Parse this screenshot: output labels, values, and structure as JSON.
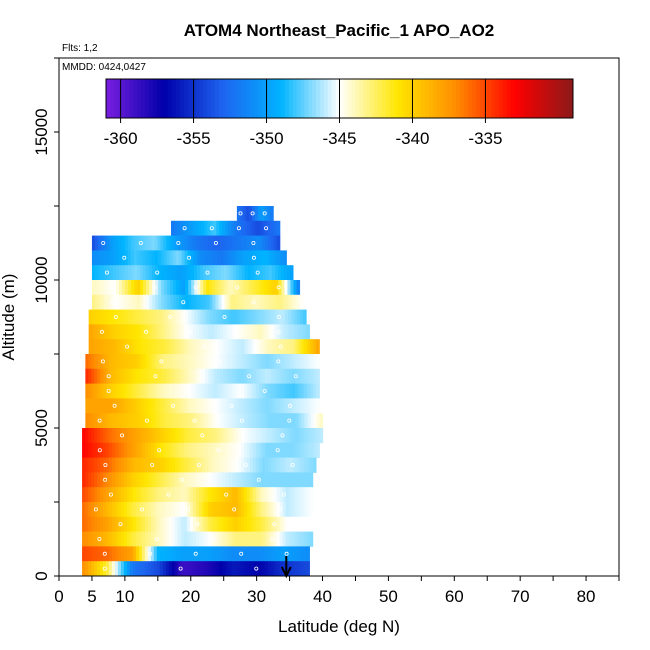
{
  "chart_data": {
    "type": "heatmap",
    "title": "ATOM4 Northeast_Pacific_1 APO_AO2",
    "annotations": [
      "Flts: 1,2",
      "MMDD: 0424,0427"
    ],
    "xlabel": "Latitude (deg N)",
    "ylabel": "Altitude (m)",
    "xlim": [
      0,
      85
    ],
    "ylim": [
      0,
      17500
    ],
    "x_ticks": [
      0,
      5,
      10,
      20,
      30,
      40,
      50,
      60,
      70,
      80
    ],
    "y_ticks": [
      0,
      5000,
      10000,
      15000
    ],
    "colorbar": {
      "ticks": [
        -360,
        -355,
        -350,
        -345,
        -340,
        -335
      ],
      "range": [
        -361,
        -329
      ],
      "colors": [
        "#7a1fe0",
        "#0000aa",
        "#1e64f0",
        "#00b4ff",
        "#ffffff",
        "#ffe600",
        "#ff8c00",
        "#ff0000",
        "#8b1a1a"
      ]
    },
    "marker": {
      "latitude": 34.5,
      "label": ""
    },
    "data_rows": [
      {
        "alt_lo": 12000,
        "alt_hi": 12500,
        "lat_min": 27,
        "lat_max": 32.5,
        "values": [
          -352,
          -354,
          -350,
          -352
        ]
      },
      {
        "alt_lo": 11500,
        "alt_hi": 12000,
        "lat_min": 17,
        "lat_max": 33.5,
        "values": [
          -352,
          -350,
          -348,
          -352,
          -354,
          -352
        ]
      },
      {
        "alt_lo": 11000,
        "alt_hi": 11500,
        "lat_min": 5,
        "lat_max": 33.5,
        "values": [
          -354,
          -350,
          -348,
          -347,
          -350,
          -352,
          -353,
          -352,
          -351,
          -354
        ]
      },
      {
        "alt_lo": 10500,
        "alt_hi": 11000,
        "lat_min": 5,
        "lat_max": 34.5,
        "values": [
          -351,
          -350,
          -348,
          -349,
          -347,
          -351,
          -352,
          -350,
          -349,
          -351
        ]
      },
      {
        "alt_lo": 10000,
        "alt_hi": 10500,
        "lat_min": 5,
        "lat_max": 35.5,
        "values": [
          -349,
          -348,
          -347,
          -349,
          -350,
          -348,
          -347,
          -349,
          -348,
          -350
        ]
      },
      {
        "alt_lo": 9500,
        "alt_hi": 10000,
        "lat_min": 5,
        "lat_max": 36.5,
        "values": [
          -344,
          -345,
          -340,
          -347,
          -350,
          -341,
          -344,
          -342,
          -340,
          -352
        ]
      },
      {
        "alt_lo": 9000,
        "alt_hi": 9500,
        "lat_min": 5,
        "lat_max": 37,
        "values": [
          -343,
          -345,
          -344,
          -347,
          -349,
          -348,
          -343,
          -344,
          -343,
          -345
        ]
      },
      {
        "alt_lo": 8500,
        "alt_hi": 9000,
        "lat_min": 4.5,
        "lat_max": 37.5,
        "values": [
          -340,
          -341,
          -342,
          -343,
          -345,
          -347,
          -348,
          -347,
          -346,
          -348
        ]
      },
      {
        "alt_lo": 8000,
        "alt_hi": 8500,
        "lat_min": 4.5,
        "lat_max": 38,
        "values": [
          -338,
          -340,
          -341,
          -343,
          -345,
          -346,
          -345,
          -344,
          -346,
          -347
        ]
      },
      {
        "alt_lo": 7500,
        "alt_hi": 8000,
        "lat_min": 4.5,
        "lat_max": 39.5,
        "values": [
          -338,
          -339,
          -341,
          -342,
          -344,
          -345,
          -346,
          -344,
          -343,
          -338
        ]
      },
      {
        "alt_lo": 7000,
        "alt_hi": 7500,
        "lat_min": 4,
        "lat_max": 39.5,
        "values": [
          -336,
          -339,
          -340,
          -343,
          -344,
          -345,
          -346,
          -347,
          -346,
          -345
        ]
      },
      {
        "alt_lo": 6500,
        "alt_hi": 7000,
        "lat_min": 4,
        "lat_max": 39.5,
        "values": [
          -334,
          -339,
          -341,
          -342,
          -344,
          -346,
          -347,
          -346,
          -347,
          -346
        ]
      },
      {
        "alt_lo": 6000,
        "alt_hi": 6500,
        "lat_min": 4,
        "lat_max": 39.5,
        "values": [
          -337,
          -340,
          -342,
          -344,
          -345,
          -346,
          -345,
          -347,
          -348,
          -346
        ]
      },
      {
        "alt_lo": 5500,
        "alt_hi": 6000,
        "lat_min": 4,
        "lat_max": 39.5,
        "values": [
          -338,
          -338,
          -340,
          -342,
          -344,
          -345,
          -346,
          -347,
          -346,
          -345
        ]
      },
      {
        "alt_lo": 5000,
        "alt_hi": 5500,
        "lat_min": 4,
        "lat_max": 40,
        "values": [
          -337,
          -339,
          -340,
          -342,
          -343,
          -345,
          -346,
          -347,
          -347,
          -344
        ]
      },
      {
        "alt_lo": 4500,
        "alt_hi": 5000,
        "lat_min": 3.5,
        "lat_max": 40,
        "values": [
          -333,
          -336,
          -338,
          -340,
          -342,
          -343,
          -345,
          -346,
          -347,
          -346
        ]
      },
      {
        "alt_lo": 4000,
        "alt_hi": 4500,
        "lat_min": 3.5,
        "lat_max": 39.5,
        "values": [
          -333,
          -335,
          -338,
          -341,
          -343,
          -344,
          -345,
          -347,
          -347,
          -346
        ]
      },
      {
        "alt_lo": 3500,
        "alt_hi": 4000,
        "lat_min": 3.5,
        "lat_max": 39,
        "values": [
          -334,
          -336,
          -339,
          -340,
          -342,
          -344,
          -345,
          -347,
          -346,
          -347
        ]
      },
      {
        "alt_lo": 3000,
        "alt_hi": 3500,
        "lat_min": 3.5,
        "lat_max": 38.5,
        "values": [
          -334,
          -337,
          -340,
          -342,
          -344,
          -345,
          -346,
          -347,
          -347,
          -347
        ]
      },
      {
        "alt_lo": 2500,
        "alt_hi": 3000,
        "lat_min": 3.5,
        "lat_max": 38.5,
        "values": [
          -335,
          -338,
          -341,
          -343,
          -344,
          -341,
          -339,
          -344,
          -346,
          -345
        ]
      },
      {
        "alt_lo": 2000,
        "alt_hi": 2500,
        "lat_min": 3.5,
        "lat_max": 38.5,
        "values": [
          -336,
          -339,
          -342,
          -344,
          -345,
          -340,
          -339,
          -343,
          -346,
          -345
        ]
      },
      {
        "alt_lo": 1500,
        "alt_hi": 2000,
        "lat_min": 3.5,
        "lat_max": 38.5,
        "values": [
          -336,
          -338,
          -341,
          -344,
          -346,
          -342,
          -340,
          -342,
          -345,
          -345
        ]
      },
      {
        "alt_lo": 1000,
        "alt_hi": 1500,
        "lat_min": 3.5,
        "lat_max": 38.5,
        "values": [
          -337,
          -339,
          -342,
          -344,
          -346,
          -345,
          -343,
          -343,
          -346,
          -347
        ]
      },
      {
        "alt_lo": 500,
        "alt_hi": 1000,
        "lat_min": 3.5,
        "lat_max": 38,
        "values": [
          -335,
          -336,
          -338,
          -349,
          -350,
          -350,
          -351,
          -351,
          -350,
          -351
        ]
      },
      {
        "alt_lo": 0,
        "alt_hi": 500,
        "lat_min": 3.5,
        "lat_max": 38,
        "values": [
          -337,
          -342,
          -352,
          -354,
          -359,
          -358,
          -356,
          -357,
          -355,
          -354
        ]
      }
    ]
  }
}
